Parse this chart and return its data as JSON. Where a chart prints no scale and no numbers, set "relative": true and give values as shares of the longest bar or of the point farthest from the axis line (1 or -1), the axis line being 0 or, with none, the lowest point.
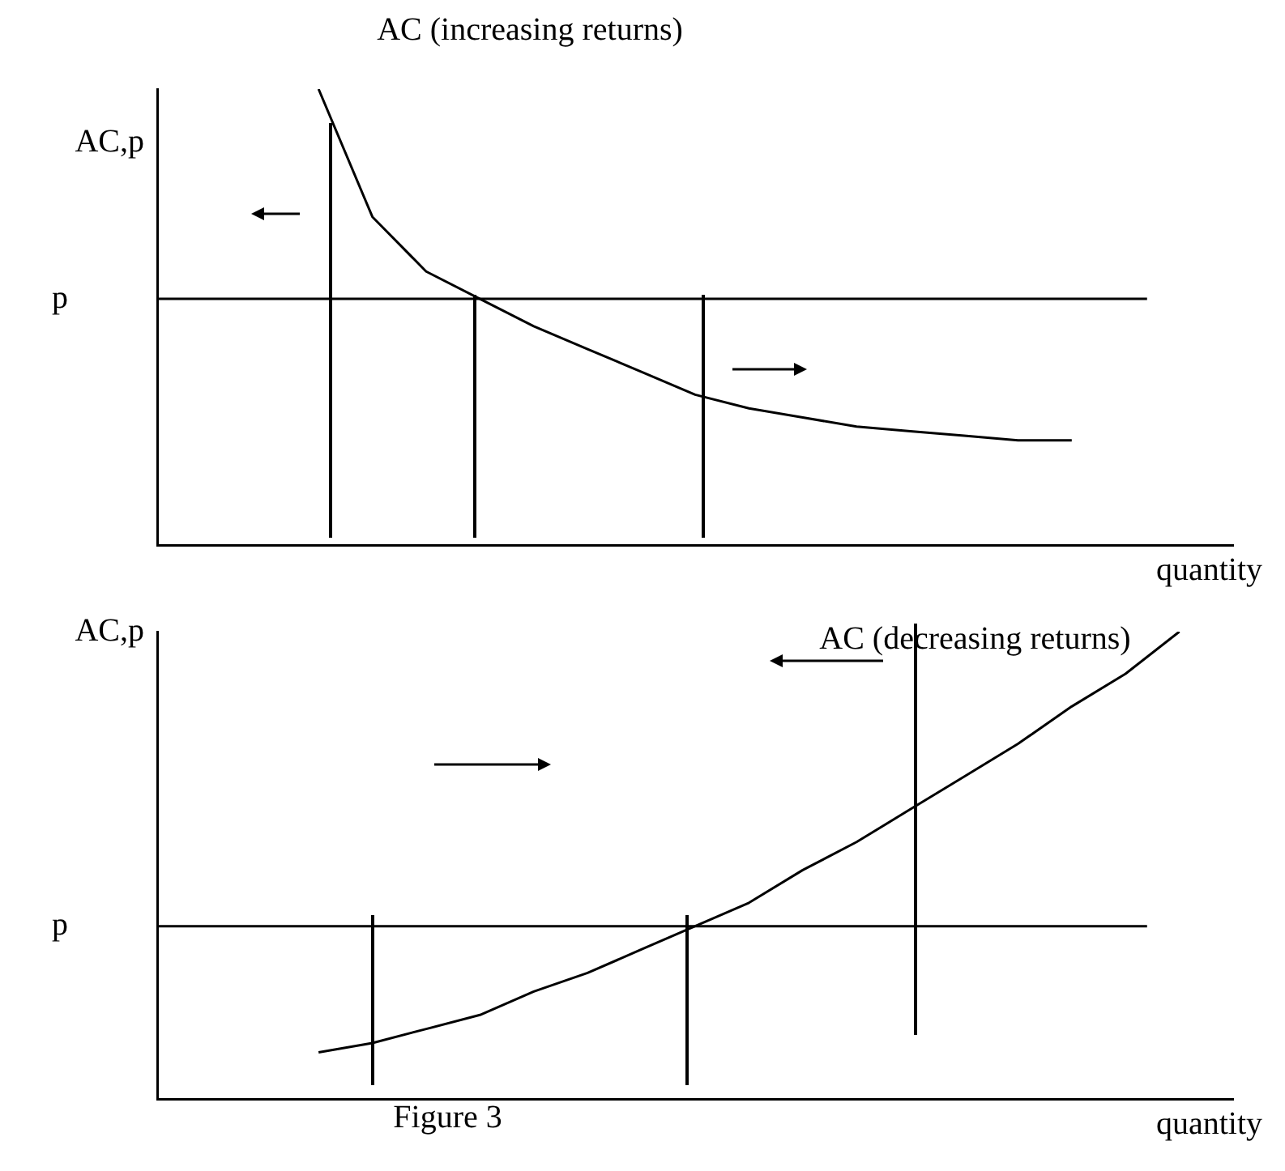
{
  "chart_data": [
    {
      "type": "line",
      "relative": true,
      "marker": "none",
      "xlabel": "quantity",
      "ylabel": "AC,p",
      "categories": [
        null,
        null,
        null,
        null,
        null,
        null,
        null,
        null,
        null,
        null,
        null,
        null,
        null,
        null,
        null,
        null,
        null,
        null,
        null,
        null,
        null
      ],
      "series": [
        {
          "color": "#000000",
          "values": [
            null,
            null,
            null,
            1,
            0.72,
            0.6,
            0.54,
            0.48,
            0.43,
            0.38,
            0.33,
            0.3,
            0.28,
            0.26,
            0.25,
            0.24,
            0.23,
            0.23,
            null,
            null,
            null
          ]
        }
      ],
      "ref_lines": [
        {
          "axis": "y",
          "value": 0.54,
          "label": "p",
          "color": "#000000"
        }
      ],
      "annotations": [
        "AC (increasing returns)"
      ]
    },
    {
      "type": "line",
      "relative": true,
      "marker": "none",
      "xlabel": "quantity",
      "ylabel": "AC,p",
      "categories": [
        null,
        null,
        null,
        null,
        null,
        null,
        null,
        null,
        null,
        null,
        null,
        null,
        null,
        null,
        null,
        null,
        null,
        null,
        null,
        null,
        null
      ],
      "series": [
        {
          "color": "#000000",
          "values": [
            null,
            null,
            null,
            0.1,
            0.12,
            0.15,
            0.18,
            0.23,
            0.27,
            0.32,
            0.37,
            0.42,
            0.49,
            0.55,
            0.62,
            0.69,
            0.76,
            0.84,
            0.91,
            1,
            null
          ]
        }
      ],
      "ref_lines": [
        {
          "axis": "y",
          "value": 0.37,
          "label": "p",
          "color": "#000000"
        }
      ],
      "annotations": [
        "AC (decreasing returns)",
        "Figure 3"
      ]
    }
  ]
}
